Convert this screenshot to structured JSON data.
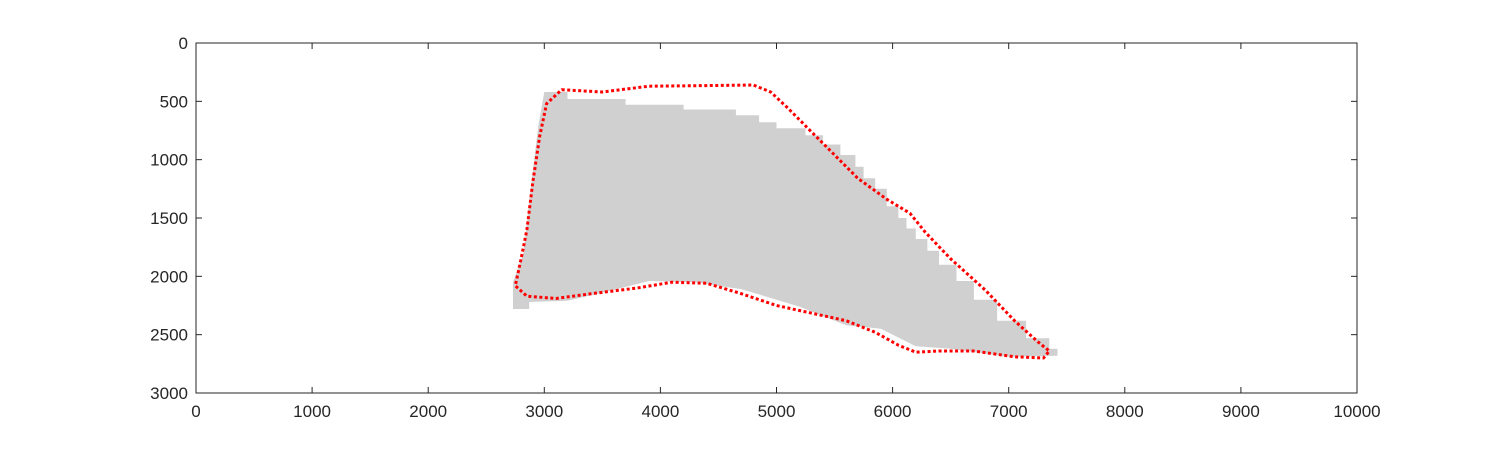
{
  "chart_data": {
    "type": "area",
    "title": "",
    "xlabel": "",
    "ylabel": "",
    "xlim": [
      0,
      10000
    ],
    "ylim": [
      0,
      3000
    ],
    "y_direction": "reversed",
    "grid": false,
    "x_ticks": [
      0,
      1000,
      2000,
      3000,
      4000,
      5000,
      6000,
      7000,
      8000,
      9000,
      10000
    ],
    "y_ticks": [
      0,
      500,
      1000,
      1500,
      2000,
      2500,
      3000
    ],
    "x_tick_labels": [
      "0",
      "1000",
      "2000",
      "3000",
      "4000",
      "5000",
      "6000",
      "7000",
      "8000",
      "9000",
      "10000"
    ],
    "y_tick_labels": [
      "0",
      "500",
      "1000",
      "1500",
      "2000",
      "2500",
      "3000"
    ],
    "series": [
      {
        "kind": "filled-region",
        "color": "#d0d0d0",
        "points": [
          [
            3000,
            420
          ],
          [
            3200,
            420
          ],
          [
            3200,
            480
          ],
          [
            3700,
            480
          ],
          [
            3700,
            530
          ],
          [
            4200,
            530
          ],
          [
            4200,
            570
          ],
          [
            4650,
            570
          ],
          [
            4650,
            620
          ],
          [
            4850,
            620
          ],
          [
            4850,
            680
          ],
          [
            5000,
            680
          ],
          [
            5000,
            730
          ],
          [
            5250,
            730
          ],
          [
            5250,
            790
          ],
          [
            5400,
            790
          ],
          [
            5400,
            870
          ],
          [
            5550,
            870
          ],
          [
            5550,
            960
          ],
          [
            5680,
            960
          ],
          [
            5680,
            1060
          ],
          [
            5750,
            1060
          ],
          [
            5750,
            1160
          ],
          [
            5850,
            1160
          ],
          [
            5850,
            1250
          ],
          [
            5950,
            1250
          ],
          [
            5950,
            1400
          ],
          [
            6050,
            1400
          ],
          [
            6050,
            1500
          ],
          [
            6120,
            1500
          ],
          [
            6120,
            1590
          ],
          [
            6200,
            1590
          ],
          [
            6200,
            1680
          ],
          [
            6300,
            1680
          ],
          [
            6300,
            1780
          ],
          [
            6400,
            1780
          ],
          [
            6400,
            1900
          ],
          [
            6550,
            1900
          ],
          [
            6550,
            2040
          ],
          [
            6700,
            2040
          ],
          [
            6700,
            2200
          ],
          [
            6900,
            2200
          ],
          [
            6900,
            2380
          ],
          [
            7150,
            2380
          ],
          [
            7150,
            2530
          ],
          [
            7350,
            2530
          ],
          [
            7350,
            2620
          ],
          [
            7420,
            2620
          ],
          [
            7420,
            2680
          ],
          [
            7000,
            2690
          ],
          [
            6500,
            2620
          ],
          [
            6200,
            2600
          ],
          [
            5900,
            2450
          ],
          [
            5600,
            2420
          ],
          [
            5200,
            2260
          ],
          [
            4700,
            2110
          ],
          [
            4300,
            2050
          ],
          [
            3900,
            2040
          ],
          [
            3500,
            2140
          ],
          [
            3200,
            2210
          ],
          [
            2870,
            2220
          ],
          [
            2870,
            2280
          ],
          [
            2730,
            2280
          ],
          [
            2730,
            2050
          ],
          [
            2820,
            1800
          ],
          [
            2900,
            1100
          ],
          [
            2950,
            700
          ],
          [
            3000,
            420
          ]
        ]
      },
      {
        "kind": "dotted-outline",
        "color": "#ff0000",
        "points": [
          [
            3150,
            400
          ],
          [
            3500,
            420
          ],
          [
            3900,
            370
          ],
          [
            4400,
            365
          ],
          [
            4800,
            360
          ],
          [
            4950,
            420
          ],
          [
            5100,
            560
          ],
          [
            5300,
            760
          ],
          [
            5500,
            960
          ],
          [
            5700,
            1160
          ],
          [
            5950,
            1340
          ],
          [
            6150,
            1460
          ],
          [
            6280,
            1620
          ],
          [
            6500,
            1850
          ],
          [
            6800,
            2120
          ],
          [
            7050,
            2380
          ],
          [
            7250,
            2560
          ],
          [
            7350,
            2640
          ],
          [
            7300,
            2700
          ],
          [
            7050,
            2690
          ],
          [
            6700,
            2640
          ],
          [
            6400,
            2640
          ],
          [
            6200,
            2650
          ],
          [
            6050,
            2590
          ],
          [
            5850,
            2480
          ],
          [
            5600,
            2380
          ],
          [
            5000,
            2250
          ],
          [
            4700,
            2150
          ],
          [
            4400,
            2060
          ],
          [
            4100,
            2050
          ],
          [
            3800,
            2100
          ],
          [
            3400,
            2150
          ],
          [
            3100,
            2190
          ],
          [
            2850,
            2170
          ],
          [
            2750,
            2080
          ],
          [
            2800,
            1850
          ],
          [
            2850,
            1600
          ],
          [
            2900,
            1200
          ],
          [
            2960,
            800
          ],
          [
            3020,
            520
          ],
          [
            3150,
            400
          ]
        ]
      }
    ]
  }
}
